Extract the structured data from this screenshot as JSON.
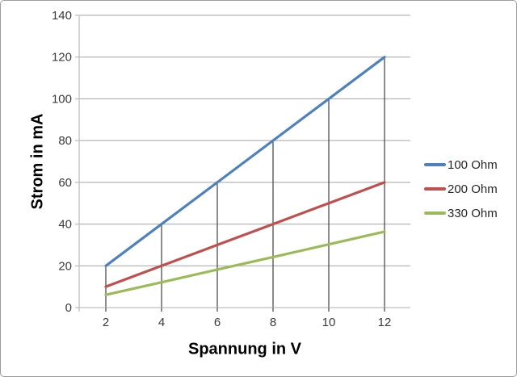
{
  "chart_data": {
    "type": "line",
    "title": "",
    "xlabel": "Spannung in V",
    "ylabel": "Strom in mA",
    "x": [
      2,
      4,
      6,
      8,
      10,
      12
    ],
    "series": [
      {
        "name": "100 Ohm",
        "color": "#4F81BD",
        "values": [
          20,
          40,
          60,
          80,
          100,
          120
        ]
      },
      {
        "name": "200 Ohm",
        "color": "#C0504D",
        "values": [
          10,
          20,
          30,
          40,
          50,
          60
        ]
      },
      {
        "name": "330 Ohm",
        "color": "#9BBB59",
        "values": [
          6.1,
          12.1,
          18.2,
          24.2,
          30.3,
          36.4
        ]
      }
    ],
    "ylim": [
      0,
      140
    ],
    "y_tick_step": 20,
    "grid": "horizontal gridlines at every 20 mA, dark vertical drop lines from x-axis up to the top series at each voltage",
    "legend_position": "right"
  },
  "colors": {
    "gridline": "#A3A3A3",
    "drop_line": "#4D4D4D",
    "axis": "#BFBFBF",
    "tick_text": "#3A3A3A",
    "legend_text": "#262626",
    "title_text": "#000000",
    "frame_border": "#9C9C9C",
    "background": "#FFFFFF"
  }
}
